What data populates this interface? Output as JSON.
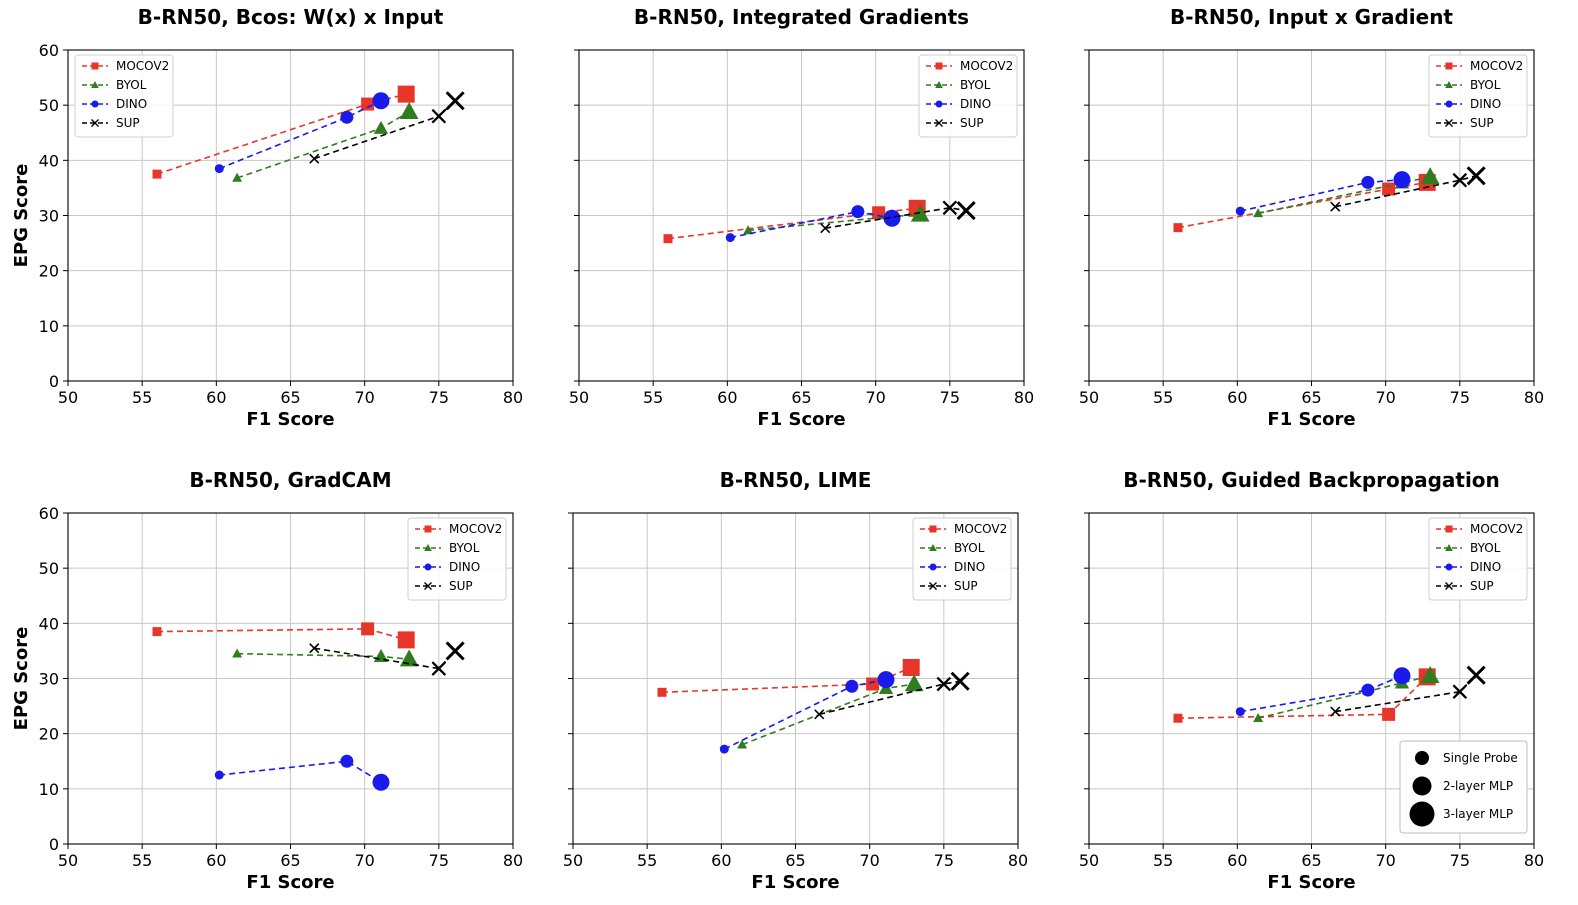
{
  "figure": {
    "probe_legend": [
      "Single Probe",
      "2-layer MLP",
      "3-layer MLP"
    ]
  },
  "colors": {
    "MOCOV2": "#e8352a",
    "BYOL": "#2f7d1f",
    "DINO": "#1a1aeb",
    "SUP": "#000000",
    "grid": "#c8c8c8"
  },
  "chart_data": [
    {
      "type": "line",
      "title": "B-RN50, Bcos: W(x) x Input",
      "xlabel": "F1 Score",
      "ylabel": "EPG Score",
      "xlim": [
        50,
        80
      ],
      "ylim": [
        0,
        60
      ],
      "xticks": [
        "50",
        "55",
        "60",
        "65",
        "70",
        "75",
        "80"
      ],
      "yticks": [
        "0",
        "10",
        "20",
        "30",
        "40",
        "50",
        "60"
      ],
      "grid": true,
      "legend_position": "top-left",
      "series": [
        {
          "name": "MOCOV2",
          "x": [
            56,
            70.2,
            72.8
          ],
          "y": [
            37.5,
            50.2,
            52
          ]
        },
        {
          "name": "BYOL",
          "x": [
            61.4,
            71.1,
            73
          ],
          "y": [
            36.8,
            45.8,
            48.8
          ]
        },
        {
          "name": "DINO",
          "x": [
            60.2,
            68.8,
            71.1
          ],
          "y": [
            38.5,
            47.8,
            50.8
          ]
        },
        {
          "name": "SUP",
          "x": [
            66.6,
            75,
            76.1
          ],
          "y": [
            40.3,
            48,
            50.8
          ]
        }
      ]
    },
    {
      "type": "line",
      "title": "B-RN50, Integrated Gradients",
      "xlabel": "F1 Score",
      "ylabel": "",
      "xlim": [
        50,
        80
      ],
      "ylim": [
        0,
        60
      ],
      "xticks": [
        "50",
        "55",
        "60",
        "65",
        "70",
        "75",
        "80"
      ],
      "yticks": [],
      "grid": true,
      "legend_position": "top-right",
      "series": [
        {
          "name": "MOCOV2",
          "x": [
            56,
            70.2,
            72.8
          ],
          "y": [
            25.8,
            30.5,
            31.3
          ]
        },
        {
          "name": "BYOL",
          "x": [
            61.4,
            71.1,
            73
          ],
          "y": [
            27.3,
            29.8,
            30.2
          ]
        },
        {
          "name": "DINO",
          "x": [
            60.2,
            68.8,
            71.1
          ],
          "y": [
            26,
            30.7,
            29.5
          ]
        },
        {
          "name": "SUP",
          "x": [
            66.6,
            75,
            76.1
          ],
          "y": [
            27.7,
            31.4,
            30.9
          ]
        }
      ]
    },
    {
      "type": "line",
      "title": "B-RN50, Input x Gradient",
      "xlabel": "F1 Score",
      "ylabel": "",
      "xlim": [
        50,
        80
      ],
      "ylim": [
        0,
        60
      ],
      "xticks": [
        "50",
        "55",
        "60",
        "65",
        "70",
        "75",
        "80"
      ],
      "yticks": [],
      "grid": true,
      "legend_position": "top-right",
      "series": [
        {
          "name": "MOCOV2",
          "x": [
            56,
            70.2,
            72.8
          ],
          "y": [
            27.8,
            34.8,
            36
          ]
        },
        {
          "name": "BYOL",
          "x": [
            61.4,
            71.1,
            73
          ],
          "y": [
            30.4,
            35.9,
            37
          ]
        },
        {
          "name": "DINO",
          "x": [
            60.2,
            68.8,
            71.1
          ],
          "y": [
            30.8,
            36,
            36.5
          ]
        },
        {
          "name": "SUP",
          "x": [
            66.6,
            75,
            76.1
          ],
          "y": [
            31.6,
            36.4,
            37.2
          ]
        }
      ]
    },
    {
      "type": "line",
      "title": "B-RN50, GradCAM",
      "xlabel": "F1 Score",
      "ylabel": "EPG Score",
      "xlim": [
        50,
        80
      ],
      "ylim": [
        0,
        60
      ],
      "xticks": [
        "50",
        "55",
        "60",
        "65",
        "70",
        "75",
        "80"
      ],
      "yticks": [
        "0",
        "10",
        "20",
        "30",
        "40",
        "50",
        "60"
      ],
      "grid": true,
      "legend_position": "top-right",
      "series": [
        {
          "name": "MOCOV2",
          "x": [
            56,
            70.2,
            72.8
          ],
          "y": [
            38.5,
            39,
            37
          ]
        },
        {
          "name": "BYOL",
          "x": [
            61.4,
            71.1,
            73
          ],
          "y": [
            34.5,
            34,
            33.5
          ]
        },
        {
          "name": "DINO",
          "x": [
            60.2,
            68.8,
            71.1
          ],
          "y": [
            12.5,
            15,
            11.2
          ]
        },
        {
          "name": "SUP",
          "x": [
            66.6,
            75,
            76.1
          ],
          "y": [
            35.5,
            31.8,
            35
          ]
        }
      ]
    },
    {
      "type": "line",
      "title": "B-RN50, LIME",
      "xlabel": "F1 Score",
      "ylabel": "",
      "xlim": [
        50,
        80
      ],
      "ylim": [
        0,
        60
      ],
      "xticks": [
        "50",
        "55",
        "60",
        "65",
        "70",
        "75",
        "80"
      ],
      "yticks": [],
      "grid": true,
      "legend_position": "top-right",
      "series": [
        {
          "name": "MOCOV2",
          "x": [
            56,
            70.2,
            72.8
          ],
          "y": [
            27.5,
            29,
            32
          ]
        },
        {
          "name": "BYOL",
          "x": [
            61.4,
            71.1,
            73
          ],
          "y": [
            18,
            28.2,
            29
          ]
        },
        {
          "name": "DINO",
          "x": [
            60.2,
            68.8,
            71.1
          ],
          "y": [
            17.2,
            28.6,
            29.8
          ]
        },
        {
          "name": "SUP",
          "x": [
            66.6,
            75,
            76.1
          ],
          "y": [
            23.5,
            29,
            29.5
          ]
        }
      ]
    },
    {
      "type": "line",
      "title": "B-RN50, Guided Backpropagation",
      "xlabel": "F1 Score",
      "ylabel": "",
      "xlim": [
        50,
        80
      ],
      "ylim": [
        0,
        60
      ],
      "xticks": [
        "50",
        "55",
        "60",
        "65",
        "70",
        "75",
        "80"
      ],
      "yticks": [],
      "grid": true,
      "legend_position": "top-right",
      "series": [
        {
          "name": "MOCOV2",
          "x": [
            56,
            70.2,
            72.8
          ],
          "y": [
            22.8,
            23.5,
            30.3
          ]
        },
        {
          "name": "BYOL",
          "x": [
            61.4,
            71.1,
            73
          ],
          "y": [
            22.8,
            29.2,
            30.5
          ]
        },
        {
          "name": "DINO",
          "x": [
            60.2,
            68.8,
            71.1
          ],
          "y": [
            24,
            27.9,
            30.5
          ]
        },
        {
          "name": "SUP",
          "x": [
            66.6,
            75,
            76.1
          ],
          "y": [
            24,
            27.6,
            30.6
          ]
        }
      ]
    }
  ]
}
